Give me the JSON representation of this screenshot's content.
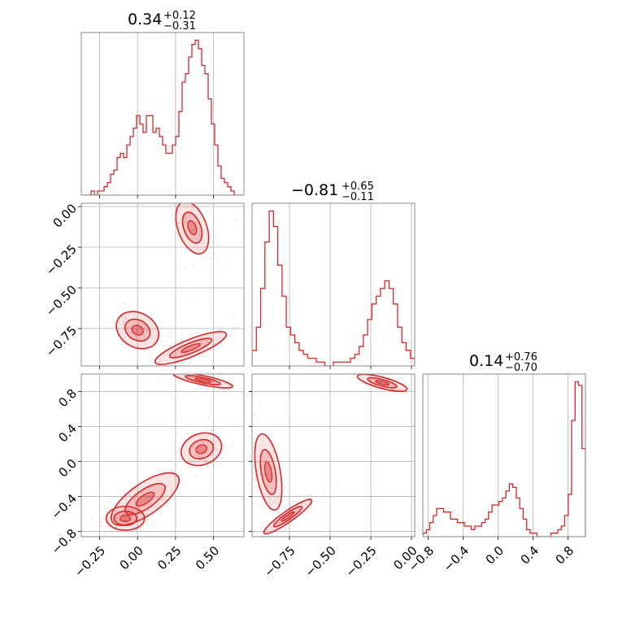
{
  "chart_data": {
    "type": "corner",
    "color": "#d62728",
    "grid": true,
    "panels": [
      {
        "id": "hist-p0",
        "kind": "histogram",
        "title": {
          "median": "0.34",
          "plus": "+0.12",
          "minus": "−0.31"
        },
        "x_range": [
          -0.37,
          0.7
        ],
        "bin_edges": [
          -0.37,
          0.7
        ],
        "counts": [
          0,
          0,
          0,
          1,
          0,
          1,
          1,
          2,
          3,
          5,
          6,
          9,
          10,
          9,
          12,
          14,
          16,
          19,
          17,
          15,
          19,
          19,
          15,
          16,
          14,
          12,
          10,
          10,
          12,
          14,
          20,
          27,
          29,
          33,
          36,
          37,
          35,
          31,
          29,
          23,
          17,
          12,
          7,
          4,
          3,
          2,
          1,
          0,
          0,
          0
        ],
        "count_max": 37,
        "x_ticks": [
          -0.25,
          0.0,
          0.25,
          0.5
        ],
        "x_tick_labels": [],
        "y_tick_labels": []
      },
      {
        "id": "hist-p1",
        "kind": "histogram",
        "title": {
          "median": "−0.81",
          "plus": "+0.65",
          "minus": "−0.11"
        },
        "x_range": [
          -0.98,
          0.02
        ],
        "counts": [
          4,
          10,
          20,
          32,
          40,
          36,
          26,
          18,
          10,
          8,
          6,
          4,
          3,
          2,
          2,
          1,
          1,
          0,
          0,
          1,
          1,
          1,
          1,
          2,
          3,
          5,
          8,
          12,
          16,
          18,
          20,
          22,
          20,
          16,
          10,
          6,
          4,
          2
        ],
        "count_max": 40,
        "x_ticks": [
          -0.75,
          -0.5,
          -0.25,
          0.0
        ],
        "x_tick_labels": [],
        "y_tick_labels": []
      },
      {
        "id": "hist-p2",
        "kind": "histogram",
        "title": {
          "median": "0.14",
          "plus": "+0.76",
          "minus": "−0.70"
        },
        "x_range": [
          -0.86,
          1.0
        ],
        "counts": [
          1,
          2,
          4,
          6,
          8,
          8,
          7,
          7,
          5,
          5,
          4,
          4,
          3,
          3,
          2,
          3,
          3,
          4,
          5,
          7,
          9,
          9,
          10,
          11,
          13,
          15,
          14,
          11,
          8,
          5,
          2,
          1,
          1,
          0,
          0,
          0,
          0,
          1,
          1,
          2,
          3,
          6,
          12,
          33,
          44,
          43,
          25
        ],
        "count_max": 44,
        "x_ticks": [
          -0.8,
          -0.4,
          0.0,
          0.4,
          0.8
        ],
        "x_tick_labels": [
          "−0.8",
          "−0.4",
          "0.0",
          "0.4",
          "0.8"
        ],
        "y_tick_labels": []
      },
      {
        "id": "scatter-p1-vs-p0",
        "kind": "contour",
        "x_range": [
          -0.37,
          0.7
        ],
        "y_range": [
          -0.98,
          0.02
        ],
        "x_ticks": [
          -0.25,
          0.0,
          0.25,
          0.5
        ],
        "y_ticks": [
          0.0,
          -0.25,
          -0.5,
          -0.75
        ],
        "y_tick_labels": [
          "0.00",
          "−0.25",
          "−0.50",
          "−0.75"
        ],
        "x_tick_labels": [],
        "blobs": [
          {
            "cx": 0.36,
            "cy": -0.13,
            "rx": 0.09,
            "ry": 0.16,
            "angle": 20
          },
          {
            "cx": 0.0,
            "cy": -0.76,
            "rx": 0.14,
            "ry": 0.1,
            "angle": -30
          },
          {
            "cx": 0.35,
            "cy": -0.87,
            "rx": 0.24,
            "ry": 0.05,
            "angle": 22
          }
        ]
      },
      {
        "id": "scatter-p2-vs-p0",
        "kind": "contour",
        "x_range": [
          -0.37,
          0.7
        ],
        "y_range": [
          -0.86,
          1.0
        ],
        "x_ticks": [
          -0.25,
          0.0,
          0.25,
          0.5
        ],
        "y_ticks": [
          0.8,
          0.4,
          0.0,
          -0.4,
          -0.8
        ],
        "x_tick_labels": [
          "−0.25",
          "0.00",
          "0.25",
          "0.50"
        ],
        "y_tick_labels": [
          "0.8",
          "0.4",
          "0.0",
          "−0.4",
          "−0.8"
        ],
        "blobs": [
          {
            "cx": 0.43,
            "cy": 0.93,
            "rx": 0.19,
            "ry": 0.05,
            "angle": -12
          },
          {
            "cx": 0.42,
            "cy": 0.14,
            "rx": 0.13,
            "ry": 0.17,
            "angle": 20
          },
          {
            "cx": 0.05,
            "cy": -0.43,
            "rx": 0.25,
            "ry": 0.17,
            "angle": 35
          },
          {
            "cx": -0.08,
            "cy": -0.65,
            "rx": 0.12,
            "ry": 0.13,
            "angle": 0
          }
        ]
      },
      {
        "id": "scatter-p2-vs-p1",
        "kind": "contour",
        "x_range": [
          -0.98,
          0.02
        ],
        "y_range": [
          -0.86,
          1.0
        ],
        "x_ticks": [
          -0.75,
          -0.5,
          -0.25,
          0.0
        ],
        "y_ticks": [
          0.8,
          0.4,
          0.0,
          -0.4,
          -0.8
        ],
        "x_tick_labels": [
          "−0.75",
          "−0.50",
          "−0.25",
          "0.00"
        ],
        "y_tick_labels": [],
        "blobs": [
          {
            "cx": -0.18,
            "cy": 0.9,
            "rx": 0.15,
            "ry": 0.06,
            "angle": -15
          },
          {
            "cx": -0.88,
            "cy": -0.12,
            "rx": 0.07,
            "ry": 0.42,
            "angle": 10
          },
          {
            "cx": -0.76,
            "cy": -0.63,
            "rx": 0.17,
            "ry": 0.06,
            "angle": 35
          }
        ]
      }
    ]
  }
}
